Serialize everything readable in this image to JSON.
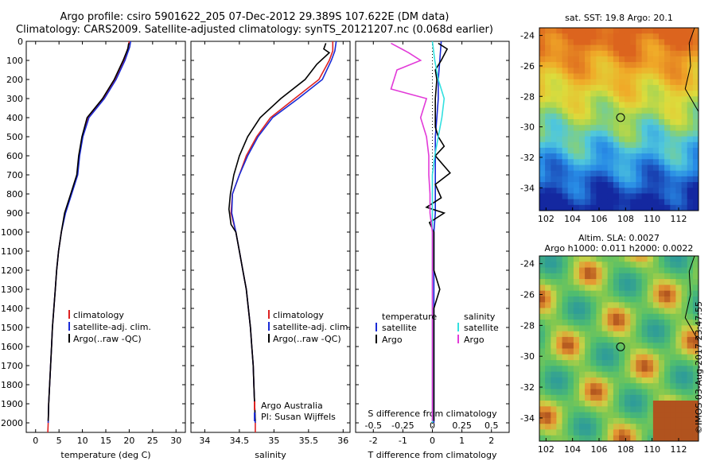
{
  "header": {
    "line1": "Argo profile: csiro 5901622_205 07-Dec-2012 29.389S 107.622E (DM data)",
    "line2": "Climatology: CARS2009. Satellite-adjusted climatology: synTS_20121207.nc (0.068d earlier)"
  },
  "credit": "©IMOS 03-Aug-2017 23:47:55",
  "colors": {
    "climatology": "#dd2222",
    "satellite": "#1a2bd6",
    "argo": "#000000",
    "sat_T": "#1a2bd6",
    "sat_S": "#33e0e0",
    "argo_S": "#e23ad8"
  },
  "chart_data": [
    {
      "type": "line",
      "xlabel": "temperature (deg C)",
      "ylabel": "",
      "xlim": [
        -2,
        32
      ],
      "ylim": [
        2050,
        0
      ],
      "xticks": [
        0,
        5,
        10,
        15,
        20,
        25,
        30
      ],
      "yticks": [
        0,
        100,
        200,
        300,
        400,
        500,
        600,
        700,
        800,
        900,
        1000,
        1100,
        1200,
        1300,
        1400,
        1500,
        1600,
        1700,
        1800,
        1900,
        2000
      ],
      "legend": [
        "climatology",
        "satellite-adj. clim.",
        "Argo(..raw -QC)"
      ],
      "series": [
        {
          "name": "climatology",
          "color": "#dd2222",
          "points": [
            [
              20.0,
              0
            ],
            [
              19.8,
              30
            ],
            [
              18.9,
              100
            ],
            [
              17.0,
              200
            ],
            [
              14.5,
              300
            ],
            [
              11.2,
              400
            ],
            [
              10.0,
              500
            ],
            [
              9.3,
              600
            ],
            [
              8.9,
              700
            ],
            [
              7.6,
              800
            ],
            [
              6.3,
              900
            ],
            [
              5.5,
              1000
            ],
            [
              4.9,
              1100
            ],
            [
              4.5,
              1200
            ],
            [
              4.2,
              1300
            ],
            [
              3.9,
              1400
            ],
            [
              3.6,
              1500
            ],
            [
              3.4,
              1600
            ],
            [
              3.2,
              1700
            ],
            [
              3.0,
              1800
            ],
            [
              2.8,
              1900
            ],
            [
              2.7,
              2000
            ],
            [
              2.6,
              2050
            ]
          ]
        },
        {
          "name": "satellite-adj. clim.",
          "color": "#1a2bd6",
          "points": [
            [
              20.3,
              0
            ],
            [
              20.1,
              30
            ],
            [
              19.1,
              100
            ],
            [
              17.2,
              200
            ],
            [
              14.7,
              300
            ],
            [
              11.4,
              400
            ],
            [
              10.1,
              500
            ],
            [
              9.4,
              600
            ],
            [
              9.0,
              700
            ],
            [
              7.7,
              800
            ],
            [
              6.4,
              900
            ],
            [
              5.5,
              1000
            ],
            [
              4.9,
              1100
            ],
            [
              4.5,
              1200
            ],
            [
              4.2,
              1300
            ],
            [
              3.9,
              1400
            ],
            [
              3.6,
              1500
            ],
            [
              3.4,
              1600
            ],
            [
              3.2,
              1700
            ],
            [
              3.0,
              1800
            ],
            [
              2.8,
              1900
            ],
            [
              2.7,
              2000
            ]
          ]
        },
        {
          "name": "Argo(..raw -QC)",
          "color": "#000000",
          "points": [
            [
              19.9,
              10
            ],
            [
              19.7,
              40
            ],
            [
              18.7,
              100
            ],
            [
              16.8,
              200
            ],
            [
              14.3,
              300
            ],
            [
              11.0,
              400
            ],
            [
              9.9,
              500
            ],
            [
              9.2,
              600
            ],
            [
              8.8,
              700
            ],
            [
              7.5,
              800
            ],
            [
              6.2,
              900
            ],
            [
              5.5,
              1000
            ],
            [
              4.9,
              1100
            ],
            [
              4.5,
              1200
            ],
            [
              4.2,
              1300
            ],
            [
              3.9,
              1400
            ],
            [
              3.6,
              1500
            ],
            [
              3.4,
              1600
            ],
            [
              3.2,
              1700
            ],
            [
              3.0,
              1800
            ],
            [
              2.8,
              1900
            ],
            [
              2.7,
              1990
            ]
          ]
        }
      ]
    },
    {
      "type": "line",
      "xlabel": "salinity",
      "xlim": [
        33.8,
        36.1
      ],
      "xticks": [
        34,
        34.5,
        35,
        35.5,
        36
      ],
      "ylim": [
        2050,
        0
      ],
      "legend": [
        "climatology",
        "satellite-adj. clim.",
        "Argo(..raw -QC)"
      ],
      "annotation": [
        "Argo Australia",
        "PI: Susan Wijffels"
      ],
      "series": [
        {
          "name": "climatology",
          "color": "#dd2222",
          "points": [
            [
              35.85,
              0
            ],
            [
              35.85,
              50
            ],
            [
              35.8,
              100
            ],
            [
              35.65,
              200
            ],
            [
              35.3,
              300
            ],
            [
              34.95,
              400
            ],
            [
              34.75,
              500
            ],
            [
              34.6,
              600
            ],
            [
              34.5,
              700
            ],
            [
              34.4,
              800
            ],
            [
              34.38,
              900
            ],
            [
              34.45,
              1000
            ],
            [
              34.5,
              1100
            ],
            [
              34.55,
              1200
            ],
            [
              34.6,
              1300
            ],
            [
              34.63,
              1400
            ],
            [
              34.66,
              1500
            ],
            [
              34.68,
              1600
            ],
            [
              34.7,
              1700
            ],
            [
              34.71,
              1800
            ],
            [
              34.72,
              1900
            ],
            [
              34.73,
              2000
            ],
            [
              34.73,
              2050
            ]
          ]
        },
        {
          "name": "satellite-adj. clim.",
          "color": "#1a2bd6",
          "points": [
            [
              35.9,
              0
            ],
            [
              35.88,
              50
            ],
            [
              35.83,
              100
            ],
            [
              35.7,
              200
            ],
            [
              35.35,
              300
            ],
            [
              34.98,
              400
            ],
            [
              34.77,
              500
            ],
            [
              34.62,
              600
            ],
            [
              34.5,
              700
            ],
            [
              34.4,
              800
            ],
            [
              34.39,
              900
            ],
            [
              34.45,
              1000
            ],
            [
              34.5,
              1100
            ],
            [
              34.55,
              1200
            ],
            [
              34.6,
              1300
            ],
            [
              34.63,
              1400
            ],
            [
              34.66,
              1500
            ],
            [
              34.68,
              1600
            ],
            [
              34.7,
              1700
            ],
            [
              34.71,
              1800
            ],
            [
              34.72,
              1900
            ],
            [
              34.73,
              2000
            ]
          ]
        },
        {
          "name": "Argo(..raw -QC)",
          "color": "#000000",
          "points": [
            [
              35.75,
              10
            ],
            [
              35.72,
              40
            ],
            [
              35.8,
              60
            ],
            [
              35.62,
              120
            ],
            [
              35.45,
              200
            ],
            [
              35.1,
              300
            ],
            [
              34.8,
              400
            ],
            [
              34.62,
              500
            ],
            [
              34.5,
              600
            ],
            [
              34.42,
              700
            ],
            [
              34.37,
              800
            ],
            [
              34.35,
              880
            ],
            [
              34.38,
              960
            ],
            [
              34.45,
              1000
            ],
            [
              34.5,
              1100
            ],
            [
              34.55,
              1200
            ],
            [
              34.6,
              1300
            ],
            [
              34.63,
              1400
            ],
            [
              34.66,
              1500
            ],
            [
              34.68,
              1600
            ],
            [
              34.7,
              1700
            ],
            [
              34.71,
              1800
            ],
            [
              34.72,
              1900
            ],
            [
              34.73,
              1990
            ]
          ]
        }
      ]
    },
    {
      "type": "line",
      "xlabel": "T difference from climatology",
      "x2label": "S difference from climatology",
      "xlim": [
        -2.6,
        2.6
      ],
      "xticks": [
        -2,
        -1,
        0,
        1,
        2
      ],
      "x2ticks": [
        -0.5,
        -0.25,
        0,
        0.25,
        0.5
      ],
      "ylim": [
        2050,
        0
      ],
      "legend_temperature": [
        "temperature",
        "satellite",
        "Argo"
      ],
      "legend_salinity": [
        "salinity",
        "satellite",
        "Argo"
      ],
      "series": [
        {
          "name": "temperature satellite",
          "color": "#1a2bd6",
          "points": [
            [
              0.3,
              0
            ],
            [
              0.25,
              100
            ],
            [
              0.2,
              200
            ],
            [
              0.2,
              300
            ],
            [
              0.15,
              400
            ],
            [
              0.1,
              500
            ],
            [
              0.1,
              600
            ],
            [
              0.1,
              700
            ],
            [
              0.1,
              800
            ],
            [
              0.1,
              900
            ],
            [
              0.05,
              1000
            ],
            [
              0.05,
              1200
            ],
            [
              0.05,
              1500
            ],
            [
              0.05,
              1800
            ],
            [
              0.05,
              2000
            ]
          ]
        },
        {
          "name": "temperature Argo",
          "color": "#000000",
          "points": [
            [
              0.2,
              10
            ],
            [
              0.5,
              40
            ],
            [
              0.3,
              100
            ],
            [
              0.1,
              150
            ],
            [
              0.15,
              200
            ],
            [
              0.1,
              300
            ],
            [
              0.1,
              450
            ],
            [
              0.2,
              500
            ],
            [
              0.4,
              550
            ],
            [
              0.1,
              600
            ],
            [
              0.6,
              690
            ],
            [
              0.1,
              750
            ],
            [
              0.3,
              820
            ],
            [
              -0.2,
              870
            ],
            [
              0.4,
              900
            ],
            [
              -0.1,
              950
            ],
            [
              0.05,
              1000
            ],
            [
              0.05,
              1200
            ],
            [
              0.25,
              1300
            ],
            [
              0.05,
              1400
            ],
            [
              0.05,
              1600
            ],
            [
              0.05,
              1800
            ],
            [
              0.05,
              1990
            ]
          ]
        },
        {
          "name": "salinity satellite",
          "color": "#33e0e0",
          "points": [
            [
              0.0,
              0
            ],
            [
              0.02,
              100
            ],
            [
              0.05,
              200
            ],
            [
              0.1,
              300
            ],
            [
              0.08,
              400
            ],
            [
              0.05,
              500
            ],
            [
              0.02,
              600
            ],
            [
              0.0,
              700
            ],
            [
              0.0,
              800
            ],
            [
              0.0,
              900
            ],
            [
              0.0,
              1000
            ],
            [
              0.0,
              1200
            ],
            [
              0.0,
              1500
            ],
            [
              0.0,
              1800
            ],
            [
              0.0,
              2000
            ]
          ]
        },
        {
          "name": "salinity Argo",
          "color": "#e23ad8",
          "points": [
            [
              -0.35,
              10
            ],
            [
              -0.2,
              60
            ],
            [
              -0.1,
              100
            ],
            [
              -0.3,
              150
            ],
            [
              -0.35,
              250
            ],
            [
              -0.05,
              300
            ],
            [
              -0.1,
              400
            ],
            [
              -0.05,
              500
            ],
            [
              -0.03,
              600
            ],
            [
              -0.03,
              700
            ],
            [
              -0.02,
              800
            ],
            [
              -0.02,
              900
            ],
            [
              0.0,
              1000
            ],
            [
              0.0,
              1200
            ],
            [
              0.0,
              1500
            ],
            [
              0.0,
              1800
            ],
            [
              0.0,
              1990
            ]
          ]
        }
      ]
    }
  ],
  "maps": [
    {
      "title": "sat. SST: 19.8  Argo: 20.1",
      "yticks": [
        -24,
        -26,
        -28,
        -30,
        -32,
        -34
      ],
      "xticks": [
        102,
        104,
        106,
        108,
        110,
        112
      ],
      "colormap": "sst"
    },
    {
      "title1": "Altim. SLA: 0.0027",
      "title2": "Argo h1000: 0.011  h2000: 0.0022",
      "yticks": [
        -24,
        -26,
        -28,
        -30,
        -32,
        -34
      ],
      "xticks": [
        102,
        104,
        106,
        108,
        110,
        112
      ],
      "colormap": "sla"
    }
  ]
}
